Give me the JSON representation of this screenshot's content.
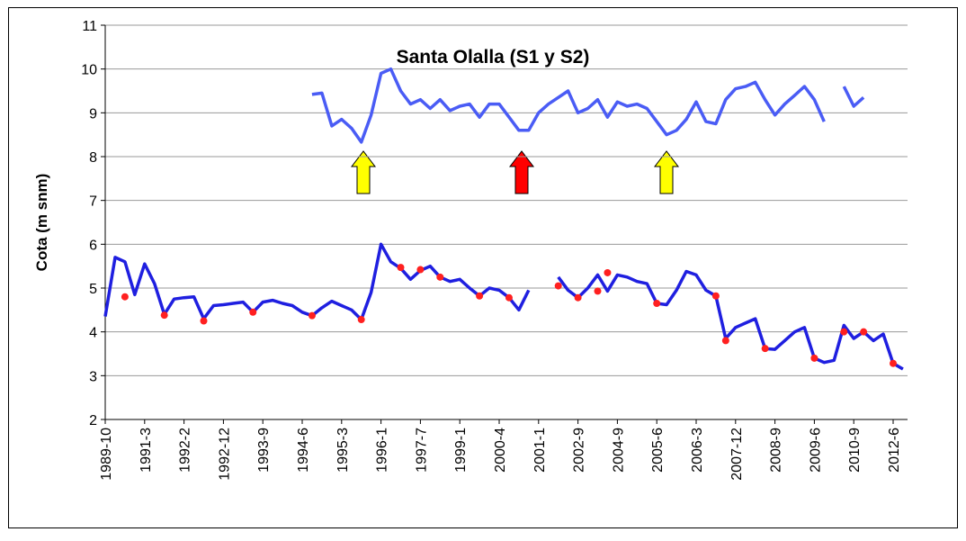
{
  "chart_data": {
    "type": "line",
    "title": "Santa Olalla (S1 y S2)",
    "y_label": "Cota (m snm)",
    "categories": [
      "1989-10",
      null,
      null,
      null,
      "1991-3",
      null,
      null,
      null,
      "1992-2",
      null,
      null,
      null,
      "1992-12",
      null,
      null,
      null,
      "1993-9",
      null,
      null,
      null,
      "1994-6",
      null,
      null,
      null,
      "1995-3",
      null,
      null,
      null,
      "1996-1",
      null,
      null,
      null,
      "1997-7",
      null,
      null,
      null,
      "1999-1",
      null,
      null,
      null,
      "2000-4",
      null,
      null,
      null,
      "2001-1",
      null,
      null,
      null,
      "2002-9",
      null,
      null,
      null,
      "2004-9",
      null,
      null,
      null,
      "2005-6",
      null,
      null,
      null,
      "2006-3",
      null,
      null,
      null,
      "2007-12",
      null,
      null,
      null,
      "2008-9",
      null,
      null,
      null,
      "2009-6",
      null,
      null,
      null,
      "2010-9",
      null,
      null,
      null,
      "2012-6",
      null
    ],
    "series": [
      {
        "style": "line",
        "color": "#4a5cf5",
        "values": [
          null,
          null,
          null,
          null,
          null,
          null,
          null,
          null,
          null,
          null,
          null,
          null,
          null,
          null,
          null,
          null,
          null,
          null,
          null,
          null,
          null,
          9.42,
          9.45,
          8.7,
          8.85,
          8.65,
          8.33,
          8.95,
          9.9,
          10.0,
          9.5,
          9.2,
          9.3,
          9.1,
          9.3,
          9.05,
          9.15,
          9.2,
          8.9,
          9.2,
          9.2,
          8.9,
          8.6,
          8.6,
          9.0,
          9.2,
          9.35,
          9.5,
          9.0,
          9.1,
          9.3,
          8.9,
          9.25,
          9.15,
          9.2,
          9.1,
          8.8,
          8.5,
          8.6,
          8.85,
          9.25,
          8.8,
          8.75,
          9.3,
          9.55,
          9.6,
          9.7,
          9.3,
          8.95,
          9.2,
          9.4,
          9.6,
          9.3,
          8.8,
          null,
          9.6,
          9.15,
          9.35,
          null,
          null,
          null,
          null
        ]
      },
      {
        "style": "line",
        "color": "#1f1fe0",
        "values": [
          4.35,
          5.7,
          5.6,
          4.85,
          5.55,
          5.1,
          4.4,
          4.75,
          4.78,
          4.8,
          4.3,
          4.6,
          4.62,
          4.65,
          4.68,
          4.45,
          4.68,
          4.72,
          4.65,
          4.6,
          4.45,
          4.37,
          4.55,
          4.7,
          4.6,
          4.5,
          4.28,
          4.9,
          6.0,
          5.6,
          5.45,
          5.2,
          5.4,
          5.5,
          5.25,
          5.15,
          5.2,
          5.0,
          4.82,
          5.0,
          4.95,
          4.78,
          4.5,
          4.95,
          null,
          null,
          5.25,
          4.95,
          4.78,
          5.0,
          5.3,
          4.93,
          5.3,
          5.25,
          5.15,
          5.1,
          4.65,
          4.62,
          4.95,
          5.38,
          5.3,
          4.95,
          4.82,
          3.85,
          4.1,
          4.2,
          4.3,
          3.62,
          3.6,
          3.8,
          4.0,
          4.1,
          3.4,
          3.3,
          3.35,
          4.15,
          3.85,
          4.0,
          3.8,
          3.95,
          3.28,
          3.15
        ]
      },
      {
        "style": "markers",
        "color": "#ff2020",
        "values": [
          null,
          null,
          4.8,
          null,
          null,
          null,
          4.38,
          null,
          null,
          null,
          4.25,
          null,
          null,
          null,
          null,
          4.45,
          null,
          null,
          null,
          null,
          null,
          4.37,
          null,
          null,
          null,
          null,
          4.28,
          null,
          null,
          null,
          5.47,
          null,
          5.42,
          null,
          5.25,
          null,
          null,
          null,
          4.82,
          null,
          null,
          4.78,
          null,
          null,
          null,
          null,
          5.05,
          null,
          4.78,
          null,
          4.93,
          5.35,
          null,
          null,
          null,
          null,
          4.65,
          null,
          null,
          null,
          null,
          null,
          4.82,
          3.8,
          null,
          null,
          null,
          3.62,
          null,
          null,
          null,
          null,
          3.4,
          null,
          null,
          4.0,
          null,
          4.0,
          null,
          null,
          3.28,
          null
        ]
      }
    ],
    "ylim": [
      2,
      11
    ],
    "yticks": [
      2,
      3,
      4,
      5,
      6,
      7,
      8,
      9,
      10,
      11
    ],
    "grid": true
  }
}
